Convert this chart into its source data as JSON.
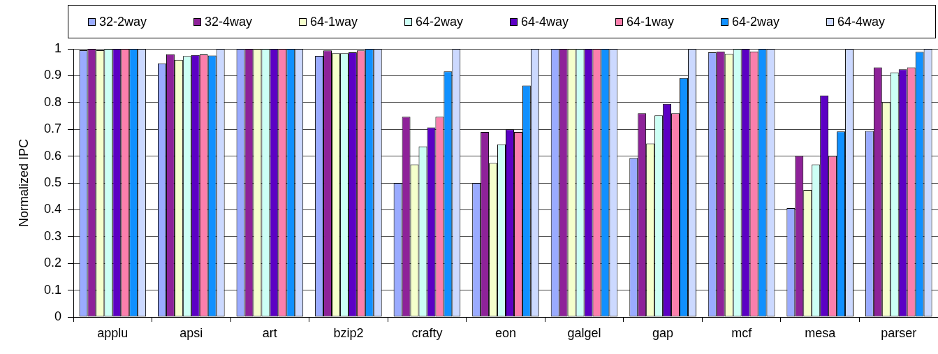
{
  "chart_data": {
    "type": "bar",
    "categories": [
      "applu",
      "apsi",
      "art",
      "bzip2",
      "crafty",
      "eon",
      "galgel",
      "gap",
      "mcf",
      "mesa",
      "parser"
    ],
    "series": [
      {
        "name": "32-2way",
        "color": "#9aabff",
        "values": [
          0.995,
          0.946,
          1,
          0.974,
          0.5,
          0.5,
          1,
          0.593,
          0.987,
          0.406,
          0.694
        ]
      },
      {
        "name": "32-4way",
        "color": "#8e2299",
        "values": [
          1,
          0.98,
          1,
          0.994,
          0.747,
          0.69,
          1,
          0.76,
          0.99,
          0.601,
          0.931
        ]
      },
      {
        "name": "64-1way",
        "color": "#f5ffcc",
        "values": [
          0.995,
          0.959,
          1,
          0.984,
          0.569,
          0.574,
          1,
          0.647,
          0.981,
          0.474,
          0.801
        ]
      },
      {
        "name": "64-2way",
        "color": "#ccfff5",
        "values": [
          1,
          0.973,
          1,
          0.984,
          0.636,
          0.644,
          1,
          0.752,
          1,
          0.569,
          0.912
        ]
      },
      {
        "name": "64-4way",
        "color": "#5c00c4",
        "values": [
          1,
          0.977,
          1,
          0.987,
          0.707,
          0.7,
          1,
          0.795,
          1,
          0.826,
          0.924
        ]
      },
      {
        "name": "64-1way",
        "color": "#fb7fac",
        "values": [
          1,
          0.979,
          1,
          0.994,
          0.747,
          0.69,
          1,
          0.76,
          0.99,
          0.6,
          0.931
        ]
      },
      {
        "name": "64-2way",
        "color": "#1090ff",
        "values": [
          1,
          0.975,
          1,
          1,
          0.916,
          0.863,
          1,
          0.891,
          1,
          0.692,
          0.989
        ]
      },
      {
        "name": "64-4way",
        "color": "#ccd9ff",
        "values": [
          1,
          1,
          1,
          1,
          1,
          1,
          1,
          1,
          1,
          1,
          1
        ]
      }
    ],
    "ylabel": "Normalized IPC",
    "ylim": [
      0,
      1
    ],
    "yticks": [
      0,
      0.1,
      0.2,
      0.3,
      0.4,
      0.5,
      0.6,
      0.7,
      0.8,
      0.9,
      1
    ],
    "grid": "y",
    "legend": "top"
  }
}
